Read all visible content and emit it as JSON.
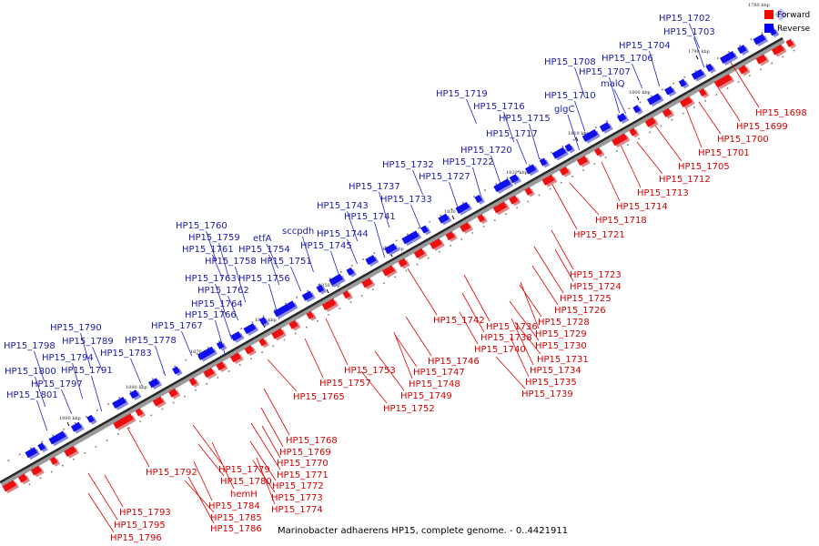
{
  "caption": "Marinobacter adhaerens HP15, complete genome. - 0..4421911",
  "legend": [
    {
      "label": "Forward",
      "color": "#ff0000"
    },
    {
      "label": "Reverse",
      "color": "#0000ff"
    }
  ],
  "corner_tick": "1780 kbp",
  "ticks": [
    "1790 kbp",
    "1800 kbp",
    "1810 kbp",
    "1820 kbp",
    "1830 kbp",
    "1840 kbp",
    "1850 kbp",
    "1860 kbp",
    "1870 kbp",
    "1880 kbp",
    "1890 kbp"
  ],
  "forward_labels": [
    "HP15_1698",
    "HP15_1699",
    "HP15_1700",
    "HP15_1701",
    "HP15_1705",
    "HP15_1712",
    "HP15_1713",
    "HP15_1714",
    "HP15_1718",
    "HP15_1721",
    "HP15_1723",
    "HP15_1724",
    "HP15_1725",
    "HP15_1726",
    "HP15_1728",
    "HP15_1729",
    "HP15_1730",
    "HP15_1731",
    "HP15_1734",
    "HP15_1735",
    "HP15_1739",
    "HP15_1736",
    "HP15_1738",
    "HP15_1740",
    "HP15_1742",
    "HP15_1746",
    "HP15_1747",
    "HP15_1748",
    "HP15_1749",
    "HP15_1752",
    "HP15_1753",
    "HP15_1757",
    "HP15_1765",
    "HP15_1768",
    "HP15_1769",
    "HP15_1770",
    "HP15_1771",
    "HP15_1772",
    "HP15_1773",
    "HP15_1774",
    "HP15_1779",
    "HP15_1780",
    "hemH",
    "HP15_1784",
    "HP15_1785",
    "HP15_1786",
    "HP15_1792",
    "HP15_1793",
    "HP15_1795",
    "HP15_1796"
  ],
  "reverse_labels": [
    "HP15_1702",
    "HP15_1703",
    "HP15_1704",
    "HP15_1706",
    "HP15_1708",
    "HP15_1707",
    "malQ",
    "HP15_1710",
    "glgC",
    "HP15_1719",
    "HP15_1716",
    "HP15_1715",
    "HP15_1717",
    "HP15_1720",
    "HP15_1722",
    "HP15_1732",
    "HP15_1727",
    "HP15_1737",
    "HP15_1733",
    "HP15_1743",
    "HP15_1741",
    "HP15_1744",
    "HP15_1745",
    "sccpdh",
    "etfA",
    "HP15_1760",
    "HP15_1759",
    "HP15_1761",
    "HP15_1754",
    "HP15_1758",
    "HP15_1751",
    "HP15_1763",
    "HP15_1756",
    "HP15_1762",
    "HP15_1764",
    "HP15_1766",
    "HP15_1767",
    "HP15_1778",
    "HP15_1790",
    "HP15_1789",
    "HP15_1798",
    "HP15_1794",
    "HP15_1783",
    "HP15_1800",
    "HP15_1791",
    "HP15_1797",
    "HP15_1801"
  ]
}
